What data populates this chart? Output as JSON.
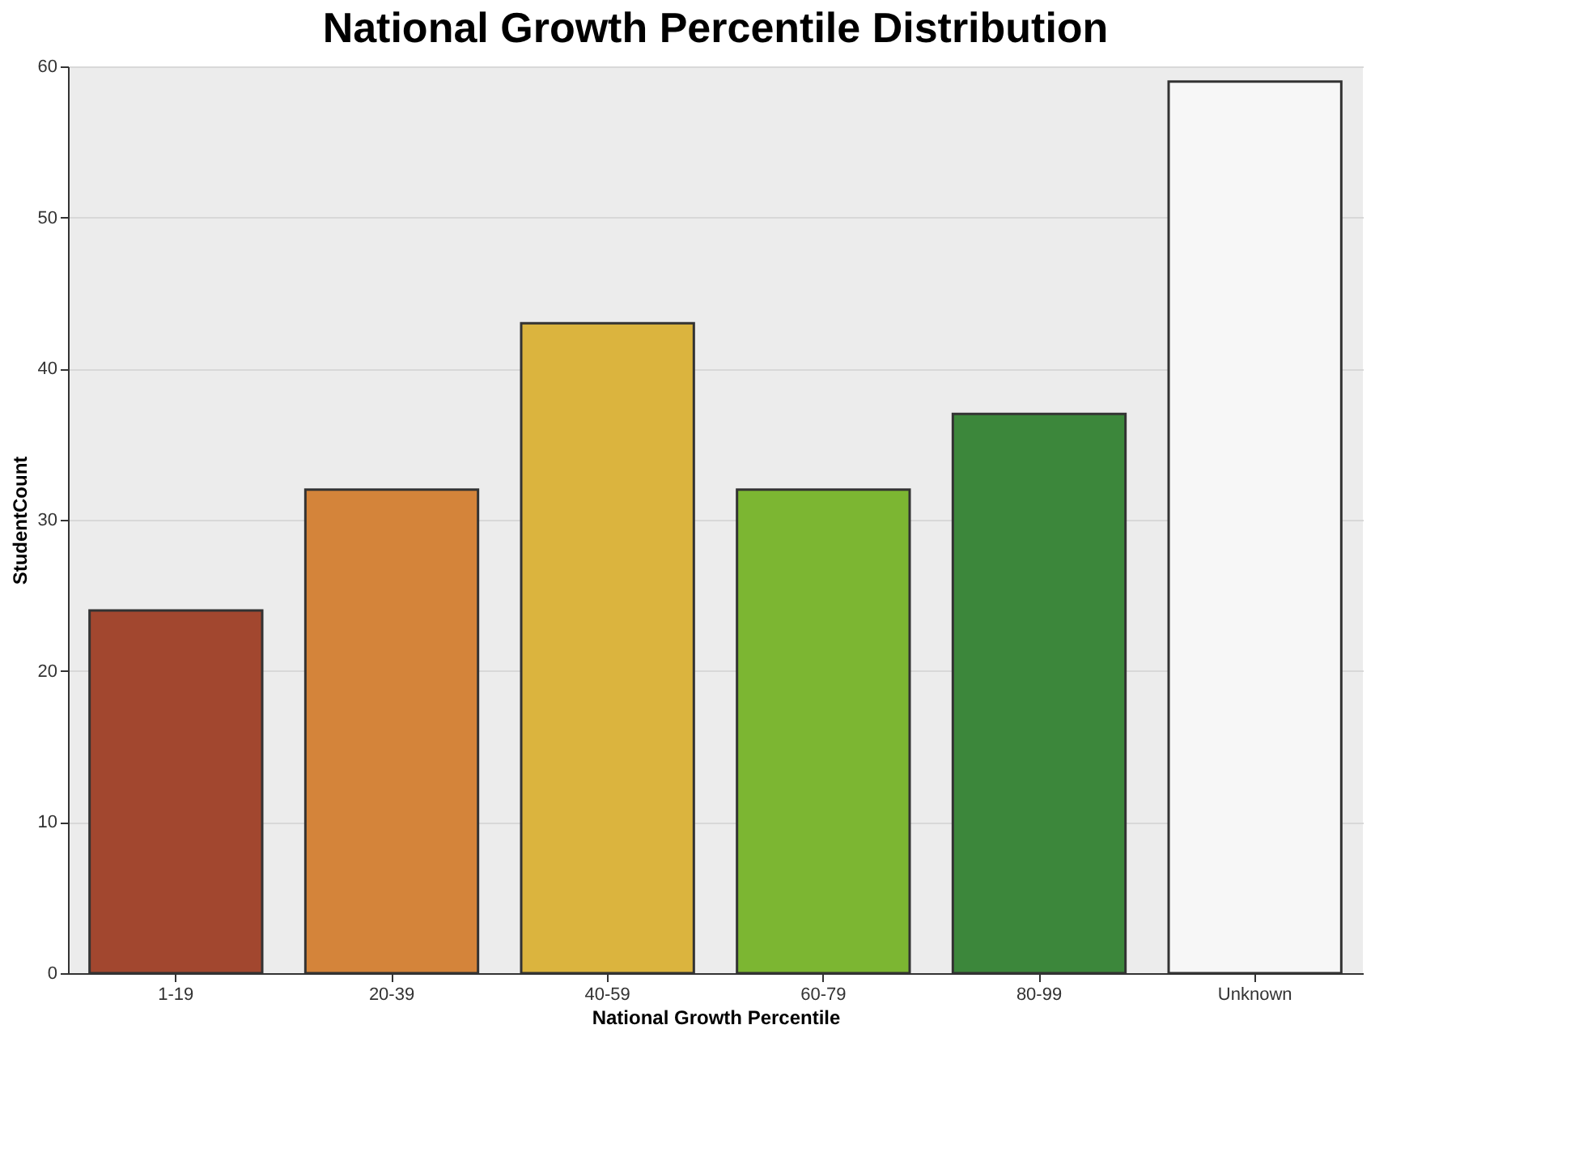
{
  "chart_data": {
    "type": "bar",
    "title": "National Growth Percentile Distribution",
    "xlabel": "National Growth Percentile",
    "ylabel": "StudentCount",
    "categories": [
      "1-19",
      "20-39",
      "40-59",
      "60-79",
      "80-99",
      "Unknown"
    ],
    "values": [
      24,
      32,
      43,
      32,
      37,
      59
    ],
    "colors": [
      "#a2472f",
      "#d4843a",
      "#dbb43e",
      "#7cb632",
      "#3c873b",
      "#f7f7f7"
    ],
    "ylim": [
      0,
      60
    ],
    "yticks": [
      0,
      10,
      20,
      30,
      40,
      50,
      60
    ],
    "grid": "y"
  }
}
